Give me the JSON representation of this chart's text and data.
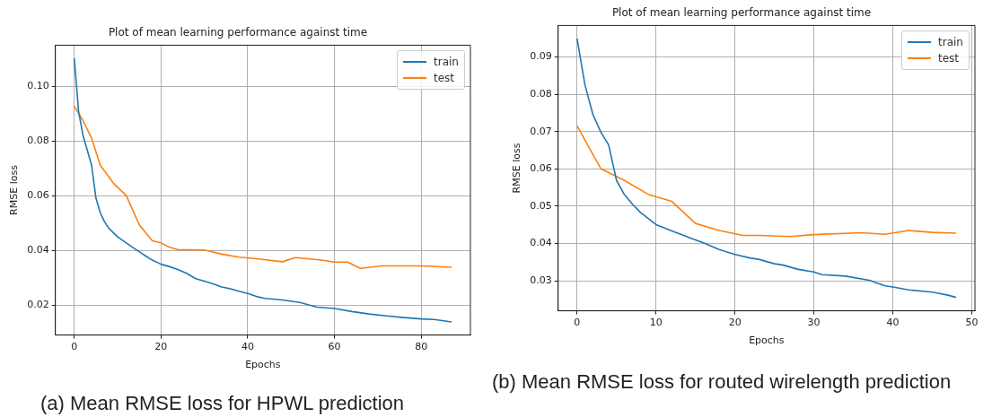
{
  "chart_data": [
    {
      "type": "line",
      "title": "Plot of mean learning performance against time",
      "xlabel": "Epochs",
      "ylabel": "RMSE loss",
      "xlim": [
        -4.35,
        91.35
      ],
      "xticks": [
        0,
        20,
        40,
        60,
        80
      ],
      "ylim": [
        0.009,
        0.115
      ],
      "yticks": [
        0.02,
        0.04,
        0.06,
        0.08,
        {
          "value": 0.1,
          "label": "0.10"
        }
      ],
      "grid": true,
      "legend": "top right",
      "marker": "none",
      "line_style": "solid",
      "annotations": [
        "(a)  Mean RMSE loss for HPWL prediction"
      ],
      "series": [
        {
          "name": "train",
          "color": "#1f77b4",
          "x": [
            0,
            1,
            2,
            3,
            4,
            5,
            6,
            7,
            8,
            10,
            12,
            14,
            16,
            18,
            20,
            22,
            24,
            26,
            28,
            30,
            32,
            34,
            36,
            38,
            40,
            42,
            44,
            48,
            52,
            56,
            60,
            64,
            68,
            72,
            76,
            80,
            83,
            87
          ],
          "values": [
            0.1103,
            0.0908,
            0.0821,
            0.0766,
            0.0711,
            0.0591,
            0.0537,
            0.0504,
            0.048,
            0.0449,
            0.0427,
            0.0405,
            0.0384,
            0.0364,
            0.0349,
            0.034,
            0.0329,
            0.0315,
            0.0296,
            0.0287,
            0.0277,
            0.0266,
            0.0259,
            0.025,
            0.0242,
            0.0231,
            0.0224,
            0.0218,
            0.0209,
            0.0192,
            0.0187,
            0.0176,
            0.0167,
            0.016,
            0.0154,
            0.0149,
            0.0147,
            0.0138
          ]
        },
        {
          "name": "test",
          "color": "#ff7f0e",
          "x": [
            0,
            2,
            4,
            6,
            9,
            12,
            15,
            18,
            20,
            22,
            24,
            26,
            30,
            34,
            38,
            42,
            48,
            51,
            57,
            60,
            63,
            66,
            71,
            80,
            87
          ],
          "values": [
            0.0927,
            0.0875,
            0.081,
            0.0711,
            0.0646,
            0.06,
            0.0493,
            0.0435,
            0.0427,
            0.0411,
            0.0402,
            0.0402,
            0.0401,
            0.0386,
            0.0375,
            0.0369,
            0.0358,
            0.0373,
            0.0364,
            0.0357,
            0.0357,
            0.0334,
            0.0343,
            0.0343,
            0.0338
          ]
        }
      ]
    },
    {
      "type": "line",
      "title": "Plot of mean learning performance against time",
      "xlabel": "Epochs",
      "ylabel": "RMSE loss",
      "xlim": [
        -2.4,
        50.4
      ],
      "xticks": [
        0,
        10,
        20,
        30,
        40,
        50
      ],
      "ylim": [
        0.022,
        0.0984
      ],
      "yticks": [
        0.03,
        0.04,
        0.05,
        0.06,
        0.07,
        0.08,
        0.09
      ],
      "grid": true,
      "legend": "top right",
      "marker": "none",
      "line_style": "solid",
      "annotations": [
        "(b)  Mean RMSE loss for routed wirelength prediction"
      ],
      "series": [
        {
          "name": "train",
          "color": "#1f77b4",
          "x": [
            0,
            1,
            2,
            3,
            4,
            5,
            6,
            7,
            8,
            10,
            12,
            14,
            16,
            18,
            20,
            22,
            23,
            25,
            26,
            28,
            30,
            31,
            34,
            37,
            39,
            40,
            42,
            45,
            47,
            48
          ],
          "values": [
            0.0949,
            0.0825,
            0.0746,
            0.0699,
            0.0664,
            0.0569,
            0.0531,
            0.0506,
            0.0484,
            0.0451,
            0.0434,
            0.0418,
            0.0402,
            0.0384,
            0.0371,
            0.0361,
            0.0358,
            0.0346,
            0.0343,
            0.0331,
            0.0324,
            0.0317,
            0.0313,
            0.0302,
            0.0287,
            0.0284,
            0.0276,
            0.027,
            0.0262,
            0.0256
          ]
        },
        {
          "name": "test",
          "color": "#ff7f0e",
          "x": [
            0,
            3,
            6,
            9,
            12,
            15,
            18,
            21,
            23,
            27,
            30,
            36,
            39,
            42,
            45,
            48
          ],
          "values": [
            0.0715,
            0.0601,
            0.0569,
            0.0532,
            0.0513,
            0.0454,
            0.0435,
            0.0422,
            0.0422,
            0.0419,
            0.0424,
            0.0429,
            0.0425,
            0.0435,
            0.043,
            0.0428
          ]
        }
      ]
    }
  ]
}
